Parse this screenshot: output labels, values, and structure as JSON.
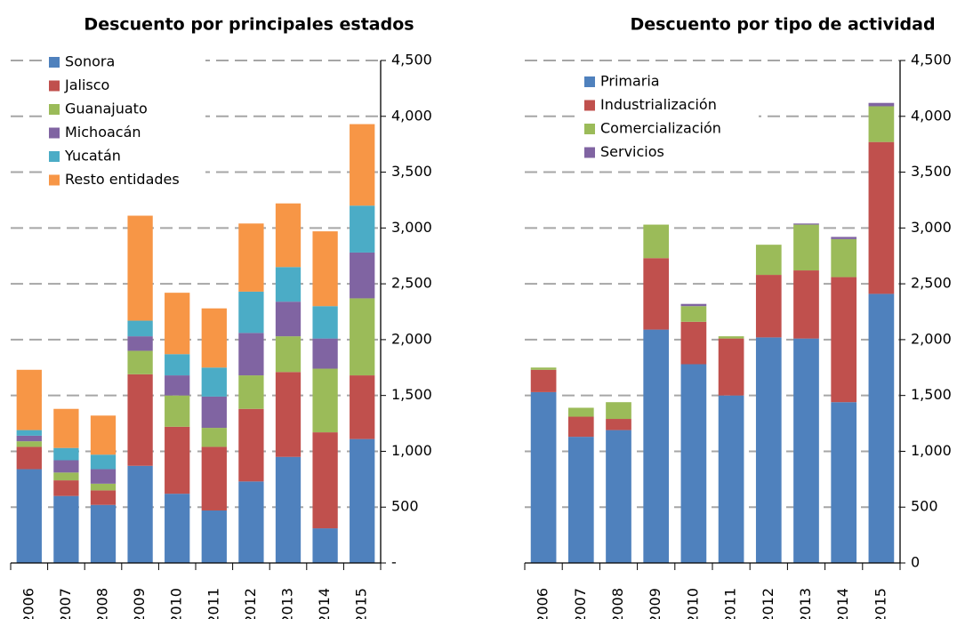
{
  "chart_data": [
    {
      "type": "bar",
      "stacked": true,
      "title": "Descuento por principales estados",
      "categories": [
        "2006",
        "2007",
        "2008",
        "2009",
        "2010",
        "2011",
        "2012",
        "2013",
        "2014",
        "2015"
      ],
      "series": [
        {
          "name": "Sonora",
          "color": "#4f81bd",
          "values": [
            840,
            600,
            520,
            870,
            620,
            470,
            730,
            950,
            310,
            1110
          ]
        },
        {
          "name": "Jalisco",
          "color": "#c0504d",
          "values": [
            200,
            140,
            130,
            820,
            600,
            570,
            650,
            760,
            860,
            570
          ]
        },
        {
          "name": "Guanajuato",
          "color": "#9bbb59",
          "values": [
            50,
            70,
            60,
            210,
            280,
            170,
            300,
            320,
            570,
            690
          ]
        },
        {
          "name": "Michoacán",
          "color": "#8064a2",
          "values": [
            50,
            110,
            130,
            130,
            180,
            280,
            380,
            310,
            270,
            410
          ]
        },
        {
          "name": "Yucatán",
          "color": "#4bacc6",
          "values": [
            50,
            110,
            130,
            140,
            190,
            260,
            370,
            310,
            290,
            420
          ]
        },
        {
          "name": "Resto entidades",
          "color": "#f79646",
          "values": [
            540,
            350,
            350,
            940,
            550,
            530,
            610,
            570,
            670,
            730
          ]
        }
      ],
      "ylim": [
        0,
        4500
      ],
      "yticks": [
        {
          "value": 0,
          "label": "-"
        },
        500,
        {
          "value": 1000,
          "label": "1,000"
        },
        {
          "value": 1500,
          "label": "1,500"
        },
        {
          "value": 2000,
          "label": "2,000"
        },
        {
          "value": 2500,
          "label": "2,500"
        },
        {
          "value": 3000,
          "label": "3,000"
        },
        {
          "value": 3500,
          "label": "3,500"
        },
        {
          "value": 4000,
          "label": "4,000"
        },
        {
          "value": 4500,
          "label": "4,500"
        }
      ],
      "grid": true,
      "legend": "top-left"
    },
    {
      "type": "bar",
      "stacked": true,
      "title": "Descuento por tipo de actividad",
      "categories": [
        "2006",
        "2007",
        "2008",
        "2009",
        "2010",
        "2011",
        "2012",
        "2013",
        "2014",
        "2015"
      ],
      "series": [
        {
          "name": "Primaria",
          "color": "#4f81bd",
          "values": [
            1530,
            1130,
            1190,
            2090,
            1780,
            1500,
            2020,
            2010,
            1440,
            2410
          ]
        },
        {
          "name": "Industrialización",
          "color": "#c0504d",
          "values": [
            200,
            180,
            100,
            640,
            380,
            510,
            560,
            610,
            1120,
            1360
          ]
        },
        {
          "name": "Comercialización",
          "color": "#9bbb59",
          "values": [
            20,
            80,
            150,
            300,
            140,
            20,
            270,
            410,
            340,
            320
          ]
        },
        {
          "name": "Servicios",
          "color": "#8064a2",
          "values": [
            0,
            0,
            0,
            0,
            20,
            0,
            0,
            10,
            20,
            30
          ]
        }
      ],
      "ylim": [
        0,
        4500
      ],
      "yticks": [
        0,
        500,
        {
          "value": 1000,
          "label": "1,000"
        },
        {
          "value": 1500,
          "label": "1,500"
        },
        {
          "value": 2000,
          "label": "2,000"
        },
        {
          "value": 2500,
          "label": "2,500"
        },
        {
          "value": 3000,
          "label": "3,000"
        },
        {
          "value": 3500,
          "label": "3,500"
        },
        {
          "value": 4000,
          "label": "4,000"
        },
        {
          "value": 4500,
          "label": "4,500"
        }
      ],
      "grid": true,
      "legend": "top-center"
    }
  ]
}
